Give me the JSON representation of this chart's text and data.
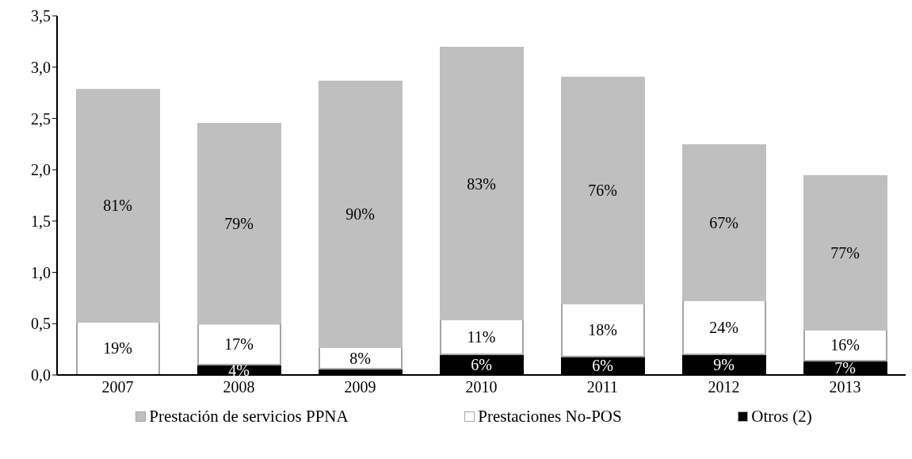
{
  "chart_data": {
    "type": "bar",
    "stacked": true,
    "categories": [
      "2007",
      "2008",
      "2009",
      "2010",
      "2011",
      "2012",
      "2013"
    ],
    "series": [
      {
        "name": "Otros (2)",
        "color": "#000000",
        "values": [
          0,
          0.1,
          0.06,
          0.2,
          0.18,
          0.2,
          0.14
        ]
      },
      {
        "name": "Prestaciones No-POS",
        "color": "#ffffff",
        "values": [
          0.52,
          0.4,
          0.21,
          0.34,
          0.52,
          0.53,
          0.3
        ]
      },
      {
        "name": "Prestación de servicios PPNA",
        "color": "#bfbfbf",
        "values": [
          2.26,
          1.95,
          2.59,
          2.65,
          2.2,
          1.51,
          1.5
        ]
      }
    ],
    "annotations": [
      {
        "text": "4%",
        "x": "2008",
        "y": 0.1
      },
      {
        "text": "6%",
        "x": "2010",
        "y": 0.2
      },
      {
        "text": "6%",
        "x": "2011",
        "y": 0.18
      },
      {
        "text": "9%",
        "x": "2012",
        "y": 0.2
      },
      {
        "text": "7%",
        "x": "2013",
        "y": 0.14
      },
      {
        "text": "19%",
        "x": "2007",
        "y": 0.52
      },
      {
        "text": "17%",
        "x": "2008",
        "y": 0.5
      },
      {
        "text": "8%",
        "x": "2009",
        "y": 0.27
      },
      {
        "text": "11%",
        "x": "2010",
        "y": 0.54
      },
      {
        "text": "18%",
        "x": "2011",
        "y": 0.7
      },
      {
        "text": "24%",
        "x": "2012",
        "y": 0.73
      },
      {
        "text": "16%",
        "x": "2013",
        "y": 0.44
      },
      "81%",
      "79%",
      "90%",
      "83%",
      "76%",
      "67%",
      "77%"
    ],
    "ylim": [
      0,
      3.5
    ],
    "yticks": [
      {
        "value": 0,
        "label": "0,0"
      },
      {
        "value": 0.5,
        "label": "0,5"
      },
      {
        "value": 1,
        "label": "1,0"
      },
      {
        "value": 1.5,
        "label": "1,5"
      },
      {
        "value": 2,
        "label": "2,0"
      },
      {
        "value": 2.5,
        "label": "2,5"
      },
      {
        "value": 3,
        "label": "3,0"
      },
      {
        "value": 3.5,
        "label": "3,5"
      }
    ],
    "grid": false,
    "legend": "bottom"
  }
}
